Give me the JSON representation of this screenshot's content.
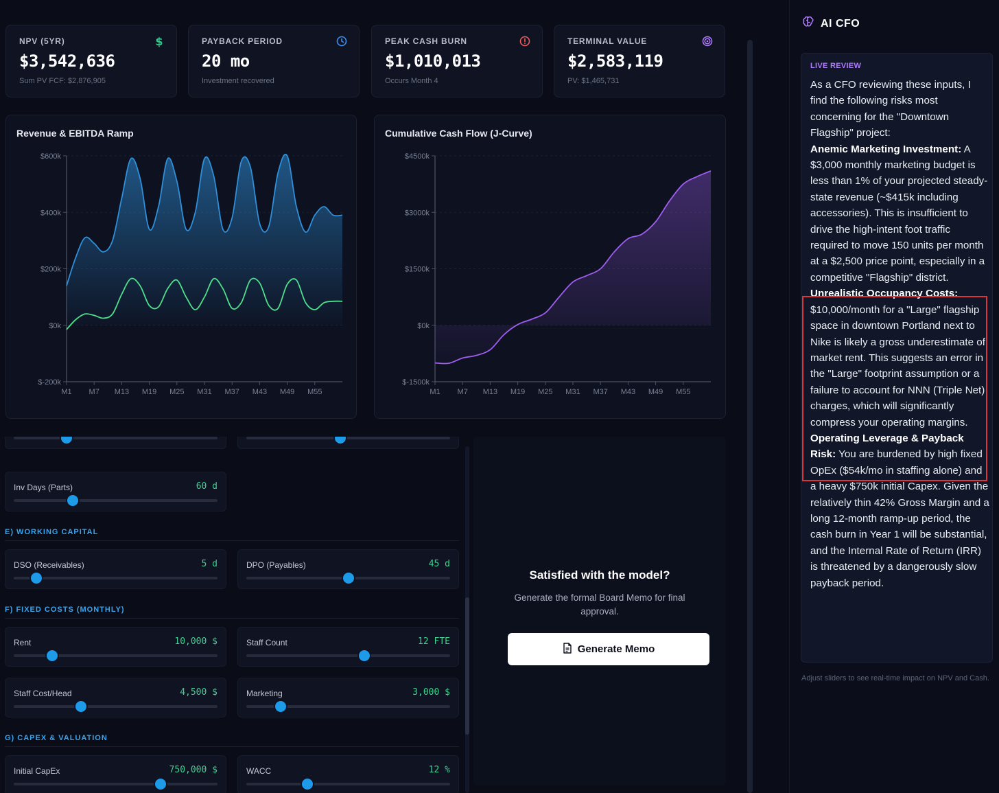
{
  "kpis": [
    {
      "label": "NPV (5YR)",
      "value": "$3,542,636",
      "sub": "Sum PV FCF: $2,876,905",
      "icon": "dollar-icon",
      "color": "#2fc98a"
    },
    {
      "label": "PAYBACK PERIOD",
      "value": "20 mo",
      "sub": "Investment recovered",
      "icon": "clock-icon",
      "color": "#3b8ff0"
    },
    {
      "label": "PEAK CASH BURN",
      "value": "$1,010,013",
      "sub": "Occurs Month 4",
      "icon": "alert-circle-icon",
      "color": "#f05a5a"
    },
    {
      "label": "TERMINAL VALUE",
      "value": "$2,583,119",
      "sub": "PV: $1,465,731",
      "icon": "target-icon",
      "color": "#b17cff"
    }
  ],
  "revenue_chart": {
    "title": "Revenue & EBITDA Ramp"
  },
  "cashflow_chart": {
    "title": "Cumulative Cash Flow (J-Curve)"
  },
  "chart_data": [
    {
      "type": "area",
      "title": "Revenue & EBITDA Ramp",
      "x_ticks": [
        "M1",
        "M7",
        "M13",
        "M19",
        "M25",
        "M31",
        "M37",
        "M43",
        "M49",
        "M55"
      ],
      "y_ticks": [
        "$600k",
        "$400k",
        "$200k",
        "$0k",
        "$-200k"
      ],
      "ylim": [
        -200,
        600
      ],
      "series": [
        {
          "name": "Revenue",
          "color": "#2f8fd8",
          "x": [
            1,
            3,
            5,
            7,
            9,
            11,
            13,
            15,
            17,
            19,
            21,
            23,
            25,
            27,
            29,
            31,
            33,
            35,
            37,
            39,
            41,
            43,
            45,
            47,
            49,
            51,
            53,
            55,
            57,
            59,
            61
          ],
          "values": [
            140,
            240,
            310,
            290,
            260,
            300,
            450,
            590,
            520,
            340,
            420,
            590,
            510,
            340,
            400,
            590,
            530,
            340,
            380,
            580,
            560,
            360,
            350,
            540,
            600,
            420,
            330,
            390,
            420,
            390,
            390
          ]
        },
        {
          "name": "EBITDA",
          "color": "#4ee08a",
          "x": [
            1,
            3,
            5,
            7,
            9,
            11,
            13,
            15,
            17,
            19,
            21,
            23,
            25,
            27,
            29,
            31,
            33,
            35,
            37,
            39,
            41,
            43,
            45,
            47,
            49,
            51,
            53,
            55,
            57,
            59,
            61
          ],
          "values": [
            -15,
            20,
            40,
            35,
            25,
            40,
            110,
            165,
            140,
            70,
            65,
            130,
            160,
            100,
            55,
            100,
            165,
            130,
            60,
            80,
            160,
            150,
            70,
            60,
            145,
            160,
            80,
            55,
            80,
            85,
            85
          ]
        }
      ]
    },
    {
      "type": "area",
      "title": "Cumulative Cash Flow (J-Curve)",
      "x_ticks": [
        "M1",
        "M7",
        "M13",
        "M19",
        "M25",
        "M31",
        "M37",
        "M43",
        "M49",
        "M55"
      ],
      "y_ticks": [
        "$4500k",
        "$3000k",
        "$1500k",
        "$0k",
        "$-1500k"
      ],
      "ylim": [
        -1500,
        4500
      ],
      "series": [
        {
          "name": "Cumulative Cash",
          "color": "#a05ef0",
          "x": [
            1,
            4,
            7,
            10,
            13,
            16,
            19,
            22,
            25,
            28,
            31,
            34,
            37,
            40,
            43,
            46,
            49,
            52,
            55,
            58,
            61
          ],
          "values": [
            -1000,
            -1010,
            -870,
            -800,
            -650,
            -250,
            20,
            160,
            330,
            750,
            1150,
            1320,
            1500,
            1950,
            2300,
            2420,
            2750,
            3300,
            3750,
            3950,
            4100
          ]
        }
      ]
    }
  ],
  "controls": {
    "partial_row": [
      {
        "value_pct": 26
      },
      {
        "value_pct": 46
      }
    ],
    "inv_days": {
      "label": "Inv Days (Parts)",
      "value": "60 d",
      "value_pct": 29
    },
    "sections": [
      {
        "title": "E) WORKING CAPITAL"
      },
      {
        "title": "F) FIXED COSTS (MONTHLY)"
      },
      {
        "title": "G) CAPEX & VALUATION"
      }
    ],
    "sliders": [
      {
        "label": "DSO (Receivables)",
        "value": "5 d",
        "value_pct": 11
      },
      {
        "label": "DPO (Payables)",
        "value": "45 d",
        "value_pct": 50
      },
      {
        "label": "Rent",
        "value": "10,000 $",
        "value_pct": 19
      },
      {
        "label": "Staff Count",
        "value": "12 FTE",
        "value_pct": 58
      },
      {
        "label": "Staff Cost/Head",
        "value": "4,500 $",
        "value_pct": 33
      },
      {
        "label": "Marketing",
        "value": "3,000 $",
        "value_pct": 17
      },
      {
        "label": "Initial CapEx",
        "value": "750,000 $",
        "value_pct": 72
      },
      {
        "label": "WACC",
        "value": "12 %",
        "value_pct": 30
      }
    ]
  },
  "memo": {
    "title": "Satisfied with the model?",
    "subtitle": "Generate the formal Board Memo for final approval.",
    "button": "Generate Memo"
  },
  "sidebar": {
    "title": "AI CFO",
    "live_label": "LIVE REVIEW",
    "intro": "As a CFO reviewing these inputs, I find the following risks most concerning for the \"Downtown Flagship\" project:",
    "risks": [
      {
        "heading": "Anemic Marketing Investment:",
        "body": " A $3,000 monthly marketing budget is less than 1% of your projected steady-state revenue (~$415k including accessories). This is insufficient to drive the high-intent foot traffic required to move 150 units per month at a $2,500 price point, especially in a competitive \"Flagship\" district."
      },
      {
        "heading": "Unrealistic Occupancy Costs:",
        "body": " $10,000/month for a \"Large\" flagship space in downtown Portland next to Nike is likely a gross underestimate of market rent. This suggests an error in the \"Large\" footprint assumption or a failure to account for NNN (Triple Net) charges, which will significantly compress your operating margins."
      },
      {
        "heading": "Operating Leverage & Payback Risk:",
        "body": " You are burdened by high fixed OpEx ($54k/mo in staffing alone) and a heavy $750k initial Capex. Given the relatively thin 42% Gross Margin and a long 12-month ramp-up period, the cash burn in Year 1 will be substantial, and the Internal Rate of Return (IRR) is threatened by a dangerously slow payback period."
      }
    ],
    "footnote": "Adjust sliders to see real-time impact on NPV and Cash."
  }
}
